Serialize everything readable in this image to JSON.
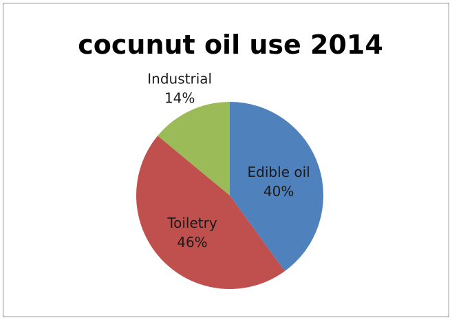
{
  "chart_data": {
    "type": "pie",
    "title": "cocunut oil use 2014",
    "slices": [
      {
        "label": "Edible oil",
        "value": 40,
        "display": "40%",
        "color": "#4f81bd"
      },
      {
        "label": "Toiletry",
        "value": 46,
        "display": "46%",
        "color": "#c0504d"
      },
      {
        "label": "Industrial",
        "value": 14,
        "display": "14%",
        "color": "#9bbb59"
      }
    ],
    "start_angle_deg": 0,
    "direction": "clockwise",
    "label_placement": [
      "inside",
      "inside",
      "outside"
    ]
  }
}
